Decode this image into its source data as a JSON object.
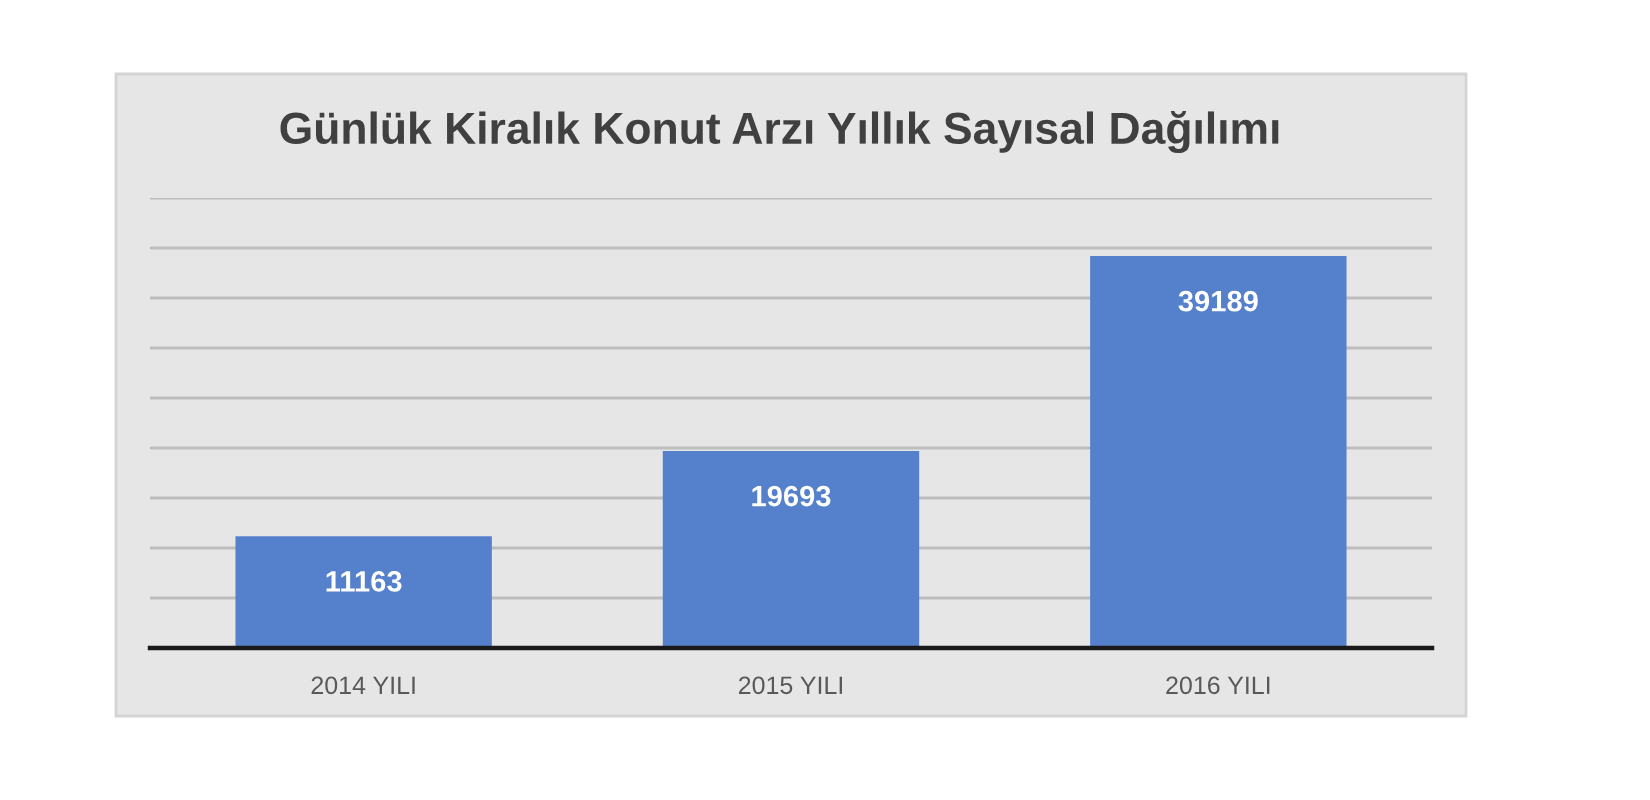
{
  "chart_data": {
    "type": "bar",
    "title": "Günlük Kiralık Konut Arzı Yıllık Sayısal Dağılımı",
    "categories": [
      "2014 YILI",
      "2015 YILI",
      "2016 YILI"
    ],
    "values": [
      11163,
      19693,
      39189
    ],
    "color": "#5580cb",
    "ylim": [
      0,
      45000
    ],
    "yticks": [
      {
        "value": 0,
        "label": null
      },
      {
        "value": 5000,
        "label": null
      },
      {
        "value": 10000,
        "label": null
      },
      {
        "value": 15000,
        "label": null
      },
      {
        "value": 20000,
        "label": null
      },
      {
        "value": 25000,
        "label": null
      },
      {
        "value": 30000,
        "label": null
      },
      {
        "value": 35000,
        "label": null
      },
      {
        "value": 40000,
        "label": null
      },
      {
        "value": 45000,
        "label": null
      }
    ],
    "grid": "y",
    "data_labels": true,
    "tick_labels": "x"
  }
}
